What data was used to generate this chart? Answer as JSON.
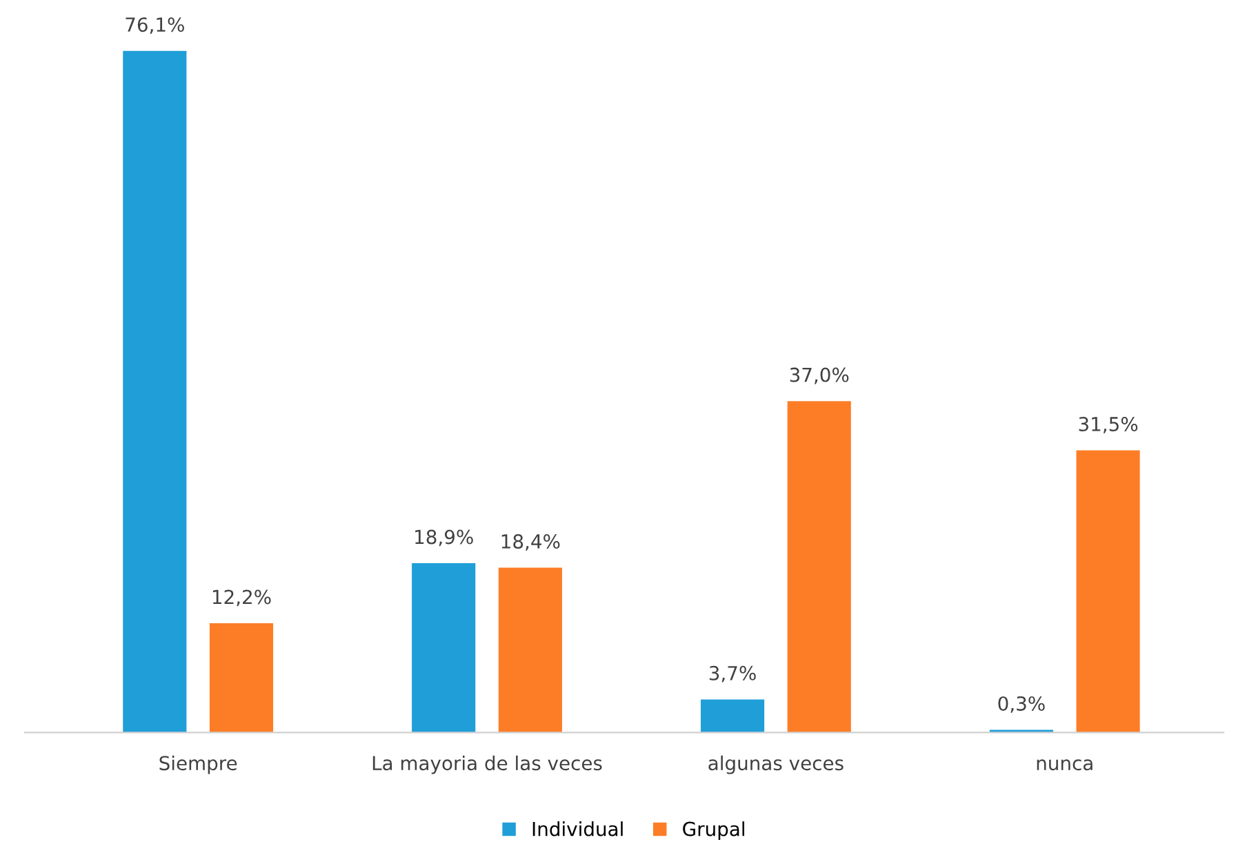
{
  "chart_data": {
    "type": "bar",
    "categories": [
      "Siempre",
      "La mayoria de las veces",
      "algunas veces",
      "nunca"
    ],
    "series": [
      {
        "name": "Individual",
        "color": "#1f9ed8",
        "values": [
          76.1,
          18.9,
          3.7,
          0.3
        ],
        "value_labels": [
          "76,1%",
          "18,9%",
          "3,7%",
          "0,3%"
        ]
      },
      {
        "name": "Grupal",
        "color": "#fd7d27",
        "values": [
          12.2,
          18.4,
          37.0,
          31.5
        ],
        "value_labels": [
          "12,2%",
          "18,4%",
          "37,0%",
          "31,5%"
        ]
      }
    ],
    "legend": "bottom",
    "grid": false
  }
}
